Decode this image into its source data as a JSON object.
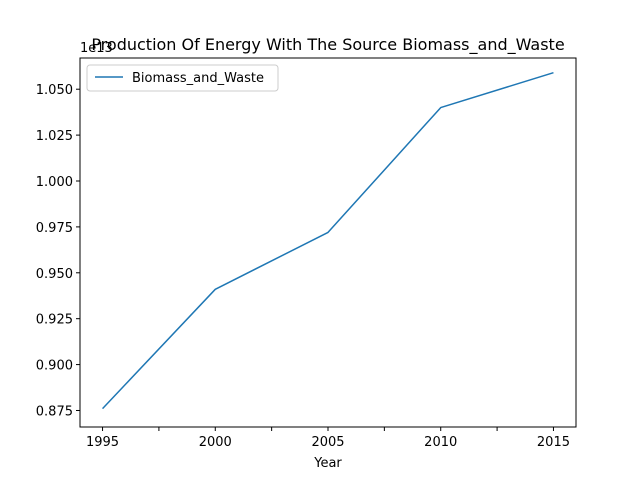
{
  "chart_data": {
    "type": "line",
    "title": "Production Of Energy With The Source Biomass_and_Waste",
    "xlabel": "Year",
    "ylabel": "",
    "y_offset_label": "1e13",
    "x": [
      1995,
      2000,
      2005,
      2010,
      2015
    ],
    "x_ticks": [
      "1995",
      "2000",
      "2005",
      "2010",
      "2015"
    ],
    "x_minor_ticks": [
      1997.5,
      2002.5,
      2007.5,
      2012.5
    ],
    "y_ticks": [
      "0.875",
      "0.900",
      "0.925",
      "0.950",
      "0.975",
      "1.000",
      "1.025",
      "1.050"
    ],
    "y_tick_values": [
      0.875,
      0.9,
      0.925,
      0.95,
      0.975,
      1.0,
      1.025,
      1.05
    ],
    "xlim": [
      1994.0,
      2016.0
    ],
    "ylim": [
      0.866,
      1.067
    ],
    "series": [
      {
        "name": "Biomass_and_Waste",
        "color": "#1f77b4",
        "values": [
          0.876,
          0.941,
          0.972,
          1.04,
          1.059
        ]
      }
    ],
    "legend": {
      "placement": "top-left"
    },
    "grid": false
  }
}
